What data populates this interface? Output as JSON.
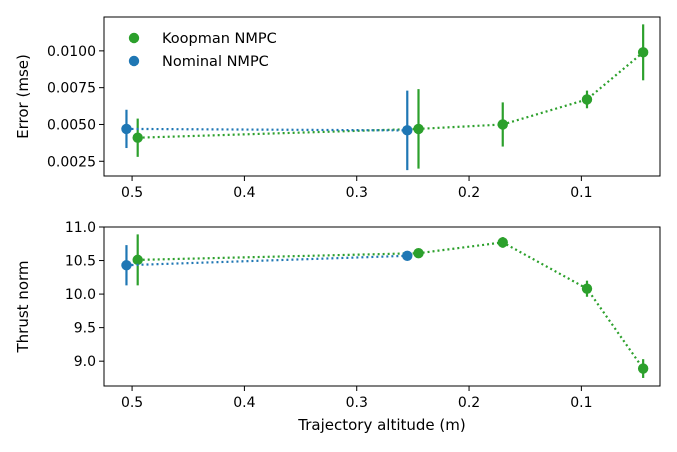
{
  "chart_data": [
    {
      "type": "scatter",
      "title": "",
      "xlabel": "",
      "ylabel": "Error (mse)",
      "x_inverted": true,
      "xlim": [
        0.03,
        0.525
      ],
      "ylim": [
        0.0015,
        0.0123
      ],
      "xticks": [
        0.5,
        0.4,
        0.3,
        0.2,
        0.1
      ],
      "xtick_labels": [
        "0.5",
        "0.4",
        "0.3",
        "0.2",
        "0.1"
      ],
      "yticks": [
        0.0025,
        0.005,
        0.0075,
        0.01
      ],
      "ytick_labels": [
        "0.0025",
        "0.0050",
        "0.0075",
        "0.0100"
      ],
      "legend": {
        "position": "upper-left",
        "entries": [
          "Koopman NMPC",
          "Nominal NMPC"
        ]
      },
      "series": [
        {
          "name": "Koopman NMPC",
          "color": "#2ca02c",
          "x": [
            0.495,
            0.245,
            0.17,
            0.095,
            0.045
          ],
          "y": [
            0.0041,
            0.0047,
            0.005,
            0.0067,
            0.0099
          ],
          "err": [
            0.0013,
            0.0027,
            0.0015,
            0.0006,
            0.0019
          ]
        },
        {
          "name": "Nominal NMPC",
          "color": "#1f77b4",
          "x": [
            0.505,
            0.255
          ],
          "y": [
            0.0047,
            0.0046
          ],
          "err": [
            0.0013,
            0.0027
          ]
        }
      ]
    },
    {
      "type": "scatter",
      "title": "",
      "xlabel": "Trajectory altitude (m)",
      "ylabel": "Thrust norm",
      "x_inverted": true,
      "xlim": [
        0.03,
        0.525
      ],
      "ylim": [
        8.63,
        11.0
      ],
      "xticks": [
        0.5,
        0.4,
        0.3,
        0.2,
        0.1
      ],
      "xtick_labels": [
        "0.5",
        "0.4",
        "0.3",
        "0.2",
        "0.1"
      ],
      "yticks": [
        9.0,
        9.5,
        10.0,
        10.5,
        11.0
      ],
      "ytick_labels": [
        "9.0",
        "9.5",
        "10.0",
        "10.5",
        "11.0"
      ],
      "series": [
        {
          "name": "Koopman NMPC",
          "color": "#2ca02c",
          "x": [
            0.495,
            0.245,
            0.17,
            0.095,
            0.045
          ],
          "y": [
            10.51,
            10.61,
            10.77,
            10.08,
            8.89
          ],
          "err": [
            0.38,
            0.03,
            0.08,
            0.12,
            0.14
          ]
        },
        {
          "name": "Nominal NMPC",
          "color": "#1f77b4",
          "x": [
            0.505,
            0.255
          ],
          "y": [
            10.43,
            10.57
          ],
          "err": [
            0.3,
            0.07
          ]
        }
      ]
    }
  ]
}
